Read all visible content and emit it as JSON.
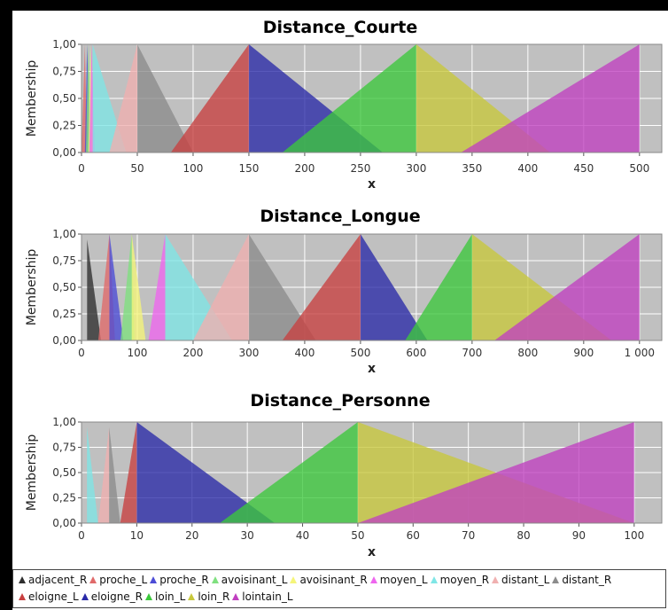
{
  "colors": {
    "adjacent_R": "#2e2e2e",
    "proche_L": "#e06a6a",
    "proche_R": "#4c4cd6",
    "avoisinant_L": "#7fe07f",
    "avoisinant_R": "#f5f57a",
    "moyen_L": "#ee66ee",
    "moyen_R": "#7fe6e6",
    "distant_L": "#f0b0b0",
    "distant_R": "#8c8c8c",
    "eloigne_L": "#c84040",
    "eloigne_R": "#2a2aa8",
    "loin_L": "#3cc83c",
    "loin_R": "#c8c83c",
    "lointain_L": "#c040c0",
    "plot_bg": "#c0c0c0"
  },
  "legend": [
    {
      "name": "adjacent_R",
      "color": "#2e2e2e"
    },
    {
      "name": "proche_L",
      "color": "#e06a6a"
    },
    {
      "name": "proche_R",
      "color": "#4c4cd6"
    },
    {
      "name": "avoisinant_L",
      "color": "#7fe07f"
    },
    {
      "name": "avoisinant_R",
      "color": "#f5f57a"
    },
    {
      "name": "moyen_L",
      "color": "#ee66ee"
    },
    {
      "name": "moyen_R",
      "color": "#7fe6e6"
    },
    {
      "name": "distant_L",
      "color": "#f0b0b0"
    },
    {
      "name": "distant_R",
      "color": "#8c8c8c"
    },
    {
      "name": "eloigne_L",
      "color": "#c84040"
    },
    {
      "name": "eloigne_R",
      "color": "#2a2aa8"
    },
    {
      "name": "loin_L",
      "color": "#3cc83c"
    },
    {
      "name": "loin_R",
      "color": "#c8c83c"
    },
    {
      "name": "lointain_L",
      "color": "#c040c0"
    }
  ],
  "chart_data": [
    {
      "type": "area",
      "title": "Distance_Courte",
      "xlabel": "x",
      "ylabel": "Membership",
      "xlim": [
        0,
        520
      ],
      "ylim": [
        0,
        1
      ],
      "xticks": [
        "0",
        "50",
        "100",
        "150",
        "200",
        "250",
        "300",
        "350",
        "400",
        "450",
        "500"
      ],
      "yticks": [
        "0,00",
        "0,25",
        "0,50",
        "0,75",
        "1,00"
      ],
      "grid": true,
      "series": [
        {
          "name": "proche_L",
          "points": [
            [
              0,
              0
            ],
            [
              3,
              1
            ],
            [
              5,
              0
            ]
          ]
        },
        {
          "name": "proche_R",
          "points": [
            [
              3,
              0
            ],
            [
              5,
              1
            ],
            [
              8,
              0
            ]
          ]
        },
        {
          "name": "avoisinant_L",
          "points": [
            [
              4,
              0
            ],
            [
              6,
              1
            ],
            [
              9,
              0
            ]
          ]
        },
        {
          "name": "avoisinant_R",
          "points": [
            [
              6,
              0
            ],
            [
              8,
              1
            ],
            [
              11,
              0
            ]
          ]
        },
        {
          "name": "moyen_L",
          "points": [
            [
              7,
              0
            ],
            [
              9,
              1
            ],
            [
              12,
              0
            ]
          ]
        },
        {
          "name": "moyen_R",
          "points": [
            [
              10,
              0
            ],
            [
              10,
              1
            ],
            [
              40,
              0
            ]
          ]
        },
        {
          "name": "distant_L",
          "points": [
            [
              25,
              0
            ],
            [
              50,
              1
            ],
            [
              50,
              0
            ]
          ]
        },
        {
          "name": "distant_R",
          "points": [
            [
              50,
              0
            ],
            [
              50,
              1
            ],
            [
              100,
              0
            ]
          ]
        },
        {
          "name": "eloigne_L",
          "points": [
            [
              80,
              0
            ],
            [
              150,
              1
            ],
            [
              150,
              0
            ]
          ]
        },
        {
          "name": "eloigne_R",
          "points": [
            [
              150,
              0
            ],
            [
              150,
              1
            ],
            [
              270,
              0
            ]
          ]
        },
        {
          "name": "loin_L",
          "points": [
            [
              180,
              0
            ],
            [
              300,
              1
            ],
            [
              300,
              0
            ]
          ]
        },
        {
          "name": "loin_R",
          "points": [
            [
              300,
              0
            ],
            [
              300,
              1
            ],
            [
              420,
              0
            ]
          ]
        },
        {
          "name": "lointain_L",
          "points": [
            [
              340,
              0
            ],
            [
              500,
              1
            ],
            [
              500,
              0
            ]
          ]
        }
      ]
    },
    {
      "type": "area",
      "title": "Distance_Longue",
      "xlabel": "x",
      "ylabel": "Membership",
      "xlim": [
        0,
        1040
      ],
      "ylim": [
        0,
        1
      ],
      "xticks": [
        "0",
        "100",
        "200",
        "300",
        "400",
        "500",
        "600",
        "700",
        "800",
        "900",
        "1 000"
      ],
      "yticks": [
        "0,00",
        "0,25",
        "0,50",
        "0,75",
        "1,00"
      ],
      "grid": true,
      "series": [
        {
          "name": "adjacent_R",
          "points": [
            [
              10,
              0
            ],
            [
              10,
              0.95
            ],
            [
              35,
              0
            ]
          ]
        },
        {
          "name": "proche_L",
          "points": [
            [
              30,
              0
            ],
            [
              50,
              1
            ],
            [
              60,
              0
            ]
          ]
        },
        {
          "name": "proche_R",
          "points": [
            [
              50,
              0
            ],
            [
              50,
              1
            ],
            [
              75,
              0
            ]
          ]
        },
        {
          "name": "avoisinant_L",
          "points": [
            [
              70,
              0
            ],
            [
              90,
              1
            ],
            [
              95,
              0
            ]
          ]
        },
        {
          "name": "avoisinant_R",
          "points": [
            [
              90,
              0
            ],
            [
              90,
              1
            ],
            [
              115,
              0
            ]
          ]
        },
        {
          "name": "moyen_L",
          "points": [
            [
              120,
              0
            ],
            [
              150,
              1
            ],
            [
              150,
              0
            ]
          ]
        },
        {
          "name": "moyen_R",
          "points": [
            [
              150,
              0
            ],
            [
              150,
              1
            ],
            [
              270,
              0
            ]
          ]
        },
        {
          "name": "distant_L",
          "points": [
            [
              200,
              0
            ],
            [
              300,
              1
            ],
            [
              300,
              0
            ]
          ]
        },
        {
          "name": "distant_R",
          "points": [
            [
              300,
              0
            ],
            [
              300,
              1
            ],
            [
              420,
              0
            ]
          ]
        },
        {
          "name": "eloigne_L",
          "points": [
            [
              360,
              0
            ],
            [
              500,
              1
            ],
            [
              500,
              0
            ]
          ]
        },
        {
          "name": "eloigne_R",
          "points": [
            [
              500,
              0
            ],
            [
              500,
              1
            ],
            [
              620,
              0
            ]
          ]
        },
        {
          "name": "loin_L",
          "points": [
            [
              580,
              0
            ],
            [
              700,
              1
            ],
            [
              700,
              0
            ]
          ]
        },
        {
          "name": "loin_R",
          "points": [
            [
              700,
              0
            ],
            [
              700,
              1
            ],
            [
              950,
              0
            ]
          ]
        },
        {
          "name": "lointain_L",
          "points": [
            [
              740,
              0
            ],
            [
              1000,
              1
            ],
            [
              1000,
              0
            ]
          ]
        }
      ]
    },
    {
      "type": "area",
      "title": "Distance_Personne",
      "xlabel": "x",
      "ylabel": "Membership",
      "xlim": [
        0,
        105
      ],
      "ylim": [
        0,
        1
      ],
      "xticks": [
        "0",
        "10",
        "20",
        "30",
        "40",
        "50",
        "60",
        "70",
        "80",
        "90",
        "100"
      ],
      "yticks": [
        "0,00",
        "0,25",
        "0,50",
        "0,75",
        "1,00"
      ],
      "grid": true,
      "series": [
        {
          "name": "moyen_R",
          "points": [
            [
              1,
              0
            ],
            [
              1,
              0.95
            ],
            [
              3,
              0
            ]
          ]
        },
        {
          "name": "distant_L",
          "points": [
            [
              3,
              0
            ],
            [
              5,
              0.95
            ],
            [
              5,
              0
            ]
          ]
        },
        {
          "name": "distant_R",
          "points": [
            [
              5,
              0
            ],
            [
              5,
              0.95
            ],
            [
              7,
              0
            ]
          ]
        },
        {
          "name": "eloigne_L",
          "points": [
            [
              7,
              0
            ],
            [
              10,
              1
            ],
            [
              10,
              0
            ]
          ]
        },
        {
          "name": "eloigne_R",
          "points": [
            [
              10,
              0
            ],
            [
              10,
              1
            ],
            [
              35,
              0
            ]
          ]
        },
        {
          "name": "loin_L",
          "points": [
            [
              25,
              0
            ],
            [
              50,
              1
            ],
            [
              50,
              0
            ]
          ]
        },
        {
          "name": "loin_R",
          "points": [
            [
              50,
              0
            ],
            [
              50,
              1
            ],
            [
              100,
              0
            ]
          ]
        },
        {
          "name": "lointain_L",
          "points": [
            [
              50,
              0
            ],
            [
              100,
              1
            ],
            [
              100,
              0
            ]
          ]
        }
      ]
    }
  ]
}
